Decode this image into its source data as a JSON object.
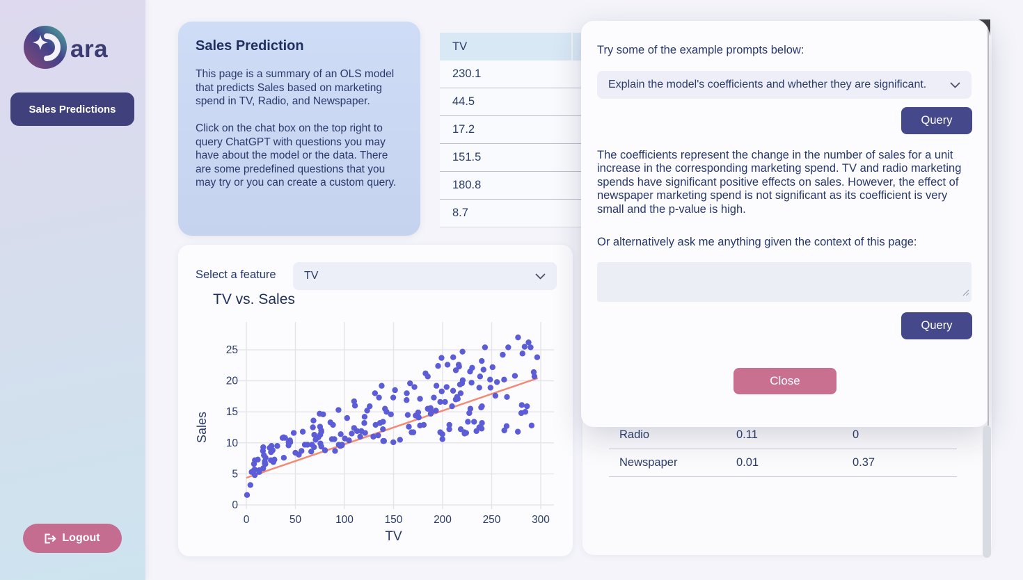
{
  "sidebar": {
    "logo_text": "ara",
    "nav_sales_predictions": "Sales Predictions",
    "logout_label": "Logout"
  },
  "info_card": {
    "title": "Sales Prediction",
    "paragraph1": "This page is a summary of an OLS model that predicts Sales based on marketing spend in TV, Radio, and Newspaper.",
    "paragraph2": "Click on the chat box on the top right to query ChatGPT with questions you may have about the model or the data. There are some predefined questions that you may try or you can create a custom query."
  },
  "data_table": {
    "header": "TV",
    "values": [
      "230.1",
      "44.5",
      "17.2",
      "151.5",
      "180.8",
      "8.7"
    ]
  },
  "feature_select": {
    "label": "Select a feature",
    "value": "TV"
  },
  "chart_data": {
    "type": "scatter",
    "title": "TV vs. Sales",
    "xlabel": "TV",
    "ylabel": "Sales",
    "xlim": [
      -13,
      316
    ],
    "ylim": [
      -0.8,
      29.3
    ],
    "x_ticks": [
      0,
      50,
      100,
      150,
      200,
      250,
      300
    ],
    "y_ticks": [
      0,
      5,
      10,
      15,
      20,
      25
    ],
    "grid": true,
    "point_color": "#5b5cd6",
    "line_color": "#f28a74",
    "trend_line": {
      "x1": 0.7,
      "y1": 4.4,
      "x2": 296.4,
      "y2": 20.4
    },
    "points": [
      [
        230.1,
        22.1
      ],
      [
        44.5,
        10.4
      ],
      [
        17.2,
        9.3
      ],
      [
        151.5,
        18.5
      ],
      [
        180.8,
        12.9
      ],
      [
        8.7,
        7.2
      ],
      [
        57.5,
        11.8
      ],
      [
        120.2,
        13.2
      ],
      [
        8.6,
        4.8
      ],
      [
        199.8,
        10.6
      ],
      [
        66.1,
        8.6
      ],
      [
        214.7,
        17.4
      ],
      [
        23.8,
        9.2
      ],
      [
        97.5,
        9.7
      ],
      [
        204.1,
        19
      ],
      [
        195.4,
        22.4
      ],
      [
        67.8,
        12.5
      ],
      [
        281.4,
        24.4
      ],
      [
        69.2,
        11.3
      ],
      [
        147.3,
        14.6
      ],
      [
        218.4,
        18
      ],
      [
        237.4,
        12.5
      ],
      [
        13.2,
        5.6
      ],
      [
        228.3,
        15.5
      ],
      [
        62.3,
        9.7
      ],
      [
        262.9,
        12
      ],
      [
        142.9,
        15
      ],
      [
        240.1,
        15.9
      ],
      [
        248.8,
        18.9
      ],
      [
        70.6,
        10.5
      ],
      [
        292.9,
        21.4
      ],
      [
        112.9,
        11.9
      ],
      [
        97.2,
        9.6
      ],
      [
        265.6,
        17.4
      ],
      [
        95.7,
        9.5
      ],
      [
        290.7,
        12.8
      ],
      [
        266.9,
        25.4
      ],
      [
        74.7,
        14.7
      ],
      [
        43.1,
        10.1
      ],
      [
        228,
        21.5
      ],
      [
        202.5,
        16.6
      ],
      [
        177,
        17.1
      ],
      [
        293.6,
        20.7
      ],
      [
        206.9,
        12.9
      ],
      [
        25.1,
        8.5
      ],
      [
        175.1,
        14.9
      ],
      [
        89.7,
        10.6
      ],
      [
        239.9,
        23.2
      ],
      [
        227.2,
        14.8
      ],
      [
        66.9,
        9.7
      ],
      [
        199.8,
        11.4
      ],
      [
        100.4,
        10.7
      ],
      [
        216.4,
        22.6
      ],
      [
        182.6,
        21.2
      ],
      [
        262.7,
        20.2
      ],
      [
        198.9,
        23.7
      ],
      [
        7.3,
        5.5
      ],
      [
        136.2,
        13.2
      ],
      [
        210.8,
        23.8
      ],
      [
        210.7,
        18.4
      ],
      [
        53.5,
        8.1
      ],
      [
        261.3,
        24.2
      ],
      [
        239.3,
        15.7
      ],
      [
        102.7,
        14
      ],
      [
        131.1,
        18
      ],
      [
        69,
        9.3
      ],
      [
        31.5,
        9.5
      ],
      [
        139.3,
        13.4
      ],
      [
        237.4,
        18.9
      ],
      [
        216.8,
        22.3
      ],
      [
        199.1,
        18.3
      ],
      [
        109.8,
        12.4
      ],
      [
        26.8,
        8.8
      ],
      [
        129.4,
        11
      ],
      [
        213.4,
        17
      ],
      [
        16.9,
        8.7
      ],
      [
        27.5,
        6.9
      ],
      [
        120.5,
        14.2
      ],
      [
        5.4,
        5.3
      ],
      [
        116,
        11
      ],
      [
        76.4,
        11.8
      ],
      [
        239.8,
        12.3
      ],
      [
        75.3,
        11.3
      ],
      [
        68.4,
        13.6
      ],
      [
        213.5,
        21.7
      ],
      [
        193.2,
        15.2
      ],
      [
        76.3,
        12
      ],
      [
        110.7,
        16
      ],
      [
        88.3,
        12.9
      ],
      [
        109.8,
        16.7
      ],
      [
        134.3,
        11.2
      ],
      [
        28.6,
        7.3
      ],
      [
        217.7,
        19.4
      ],
      [
        250.9,
        22.2
      ],
      [
        107.4,
        11.5
      ],
      [
        163.3,
        16.9
      ],
      [
        197.6,
        11.7
      ],
      [
        184.9,
        15.5
      ],
      [
        289.7,
        25.4
      ],
      [
        135.2,
        17.3
      ],
      [
        222.4,
        11.7
      ],
      [
        296.4,
        23.8
      ],
      [
        280.2,
        14.8
      ],
      [
        187.9,
        14.7
      ],
      [
        238.2,
        20.7
      ],
      [
        137.9,
        19.2
      ],
      [
        25,
        7.2
      ],
      [
        90.4,
        8.7
      ],
      [
        13.1,
        5.3
      ],
      [
        255.4,
        19.8
      ],
      [
        225.8,
        13.4
      ],
      [
        241.7,
        21.8
      ],
      [
        175.7,
        14.1
      ],
      [
        209.6,
        15.9
      ],
      [
        78.2,
        14.6
      ],
      [
        75.1,
        12.6
      ],
      [
        139.2,
        12.2
      ],
      [
        76.4,
        9.4
      ],
      [
        125.7,
        15.9
      ],
      [
        19.4,
        6.6
      ],
      [
        141.3,
        15.5
      ],
      [
        18.8,
        7
      ],
      [
        224,
        11.6
      ],
      [
        123.1,
        15.2
      ],
      [
        229.5,
        19.7
      ],
      [
        87.2,
        10.6
      ],
      [
        7.8,
        6.6
      ],
      [
        80.2,
        8.8
      ],
      [
        220.3,
        24.7
      ],
      [
        59.6,
        9.7
      ],
      [
        0.7,
        1.6
      ],
      [
        265.2,
        12.7
      ],
      [
        8.4,
        5.7
      ],
      [
        219.8,
        19.6
      ],
      [
        36.9,
        10.8
      ],
      [
        48.3,
        11.6
      ],
      [
        25.6,
        9.5
      ],
      [
        273.7,
        20.8
      ],
      [
        43,
        9.6
      ],
      [
        184.9,
        20.7
      ],
      [
        73.4,
        10.9
      ],
      [
        193.7,
        19.2
      ],
      [
        220.5,
        20.1
      ],
      [
        104.6,
        10.4
      ],
      [
        96.2,
        11.4
      ],
      [
        140.3,
        10.3
      ],
      [
        240.1,
        13.2
      ],
      [
        243.2,
        25.4
      ],
      [
        38,
        10.9
      ],
      [
        44.7,
        10.1
      ],
      [
        280.7,
        16.1
      ],
      [
        121,
        11.6
      ],
      [
        197.6,
        16.6
      ],
      [
        171.3,
        19
      ],
      [
        187.8,
        15.6
      ],
      [
        4.1,
        3.2
      ],
      [
        93.9,
        15.3
      ],
      [
        149.8,
        10.1
      ],
      [
        11.7,
        7.3
      ],
      [
        131.7,
        12.9
      ],
      [
        172.5,
        14.4
      ],
      [
        85.7,
        13.3
      ],
      [
        188.4,
        14.9
      ],
      [
        163.5,
        18
      ],
      [
        117.2,
        11.9
      ],
      [
        234.5,
        11.9
      ],
      [
        17.9,
        8
      ],
      [
        206.8,
        12.2
      ],
      [
        215.4,
        17.1
      ],
      [
        284.3,
        15
      ],
      [
        50,
        8.4
      ],
      [
        164.5,
        14.5
      ],
      [
        19.6,
        7.6
      ],
      [
        168.4,
        11.7
      ],
      [
        222.4,
        11.5
      ],
      [
        276.9,
        27
      ],
      [
        248.4,
        20.2
      ],
      [
        170.2,
        11.7
      ],
      [
        276.7,
        11.8
      ],
      [
        165.6,
        12.6
      ],
      [
        156.6,
        10.5
      ],
      [
        218.5,
        12.2
      ],
      [
        56.2,
        8.7
      ],
      [
        287.6,
        26.2
      ],
      [
        253.8,
        17.6
      ],
      [
        205,
        22.6
      ],
      [
        139.5,
        10.3
      ],
      [
        191.1,
        17.3
      ],
      [
        286,
        15.9
      ],
      [
        18.7,
        6.7
      ],
      [
        39.5,
        10.8
      ],
      [
        75.5,
        9.9
      ],
      [
        17.2,
        5.9
      ],
      [
        166.8,
        19.6
      ],
      [
        149.7,
        17.3
      ],
      [
        38.2,
        7.6
      ],
      [
        94.2,
        9.7
      ],
      [
        177,
        12.8
      ],
      [
        283.6,
        25.5
      ],
      [
        232.1,
        13.4
      ]
    ]
  },
  "coefficients_table": {
    "rows": [
      {
        "feature": "Radio",
        "coefficient": "0.11",
        "p_value": "0"
      },
      {
        "feature": "Newspaper",
        "coefficient": "0.01",
        "p_value": "0.37"
      }
    ]
  },
  "modal": {
    "prompts_label": "Try some of the example prompts below:",
    "prompt_select_value": "Explain the model's coefficients and whether they are significant.",
    "query_button_label": "Query",
    "response": "The coefficients represent the change in the number of sales for a unit increase in the corresponding marketing spend. TV and radio marketing spends have significant positive effects on sales. However, the effect of newspaper marketing spend is not significant as its coefficient is very small and the p-value is high.",
    "ask_label": "Or alternatively ask me anything given the context of this page:",
    "custom_query_value": "",
    "query_button2_label": "Query",
    "close_button_label": "Close"
  },
  "colors": {
    "accent_indigo": "#45488a",
    "accent_pink": "#c97090",
    "point_color": "#5b5cd6",
    "trend_color": "#f28a74",
    "table_header_bg": "#d9e8f5"
  }
}
